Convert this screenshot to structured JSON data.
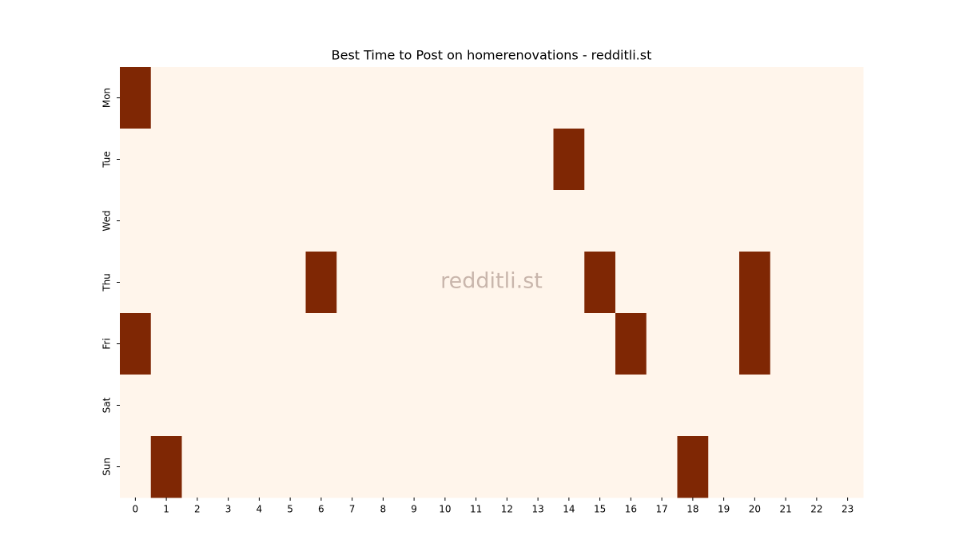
{
  "chart_data": {
    "type": "heatmap",
    "title": "Best Time to Post on homerenovations - redditli.st",
    "watermark": "redditli.st",
    "x": [
      0,
      1,
      2,
      3,
      4,
      5,
      6,
      7,
      8,
      9,
      10,
      11,
      12,
      13,
      14,
      15,
      16,
      17,
      18,
      19,
      20,
      21,
      22,
      23
    ],
    "y": [
      "Mon",
      "Tue",
      "Wed",
      "Thu",
      "Fri",
      "Sat",
      "Sun"
    ],
    "values": [
      [
        1,
        0,
        0,
        0,
        0,
        0,
        0,
        0,
        0,
        0,
        0,
        0,
        0,
        0,
        0,
        0,
        0,
        0,
        0,
        0,
        0,
        0,
        0,
        0
      ],
      [
        0,
        0,
        0,
        0,
        0,
        0,
        0,
        0,
        0,
        0,
        0,
        0,
        0,
        0,
        1,
        0,
        0,
        0,
        0,
        0,
        0,
        0,
        0,
        0
      ],
      [
        0,
        0,
        0,
        0,
        0,
        0,
        0,
        0,
        0,
        0,
        0,
        0,
        0,
        0,
        0,
        0,
        0,
        0,
        0,
        0,
        0,
        0,
        0,
        0
      ],
      [
        0,
        0,
        0,
        0,
        0,
        0,
        1,
        0,
        0,
        0,
        0,
        0,
        0,
        0,
        0,
        1,
        0,
        0,
        0,
        0,
        1,
        0,
        0,
        0
      ],
      [
        1,
        0,
        0,
        0,
        0,
        0,
        0,
        0,
        0,
        0,
        0,
        0,
        0,
        0,
        0,
        0,
        1,
        0,
        0,
        0,
        1,
        0,
        0,
        0
      ],
      [
        0,
        0,
        0,
        0,
        0,
        0,
        0,
        0,
        0,
        0,
        0,
        0,
        0,
        0,
        0,
        0,
        0,
        0,
        0,
        0,
        0,
        0,
        0,
        0
      ],
      [
        0,
        1,
        0,
        0,
        0,
        0,
        0,
        0,
        0,
        0,
        0,
        0,
        0,
        0,
        0,
        0,
        0,
        0,
        1,
        0,
        0,
        0,
        0,
        0
      ]
    ],
    "colors": [
      "#fff5eb",
      "#7f2704"
    ]
  }
}
